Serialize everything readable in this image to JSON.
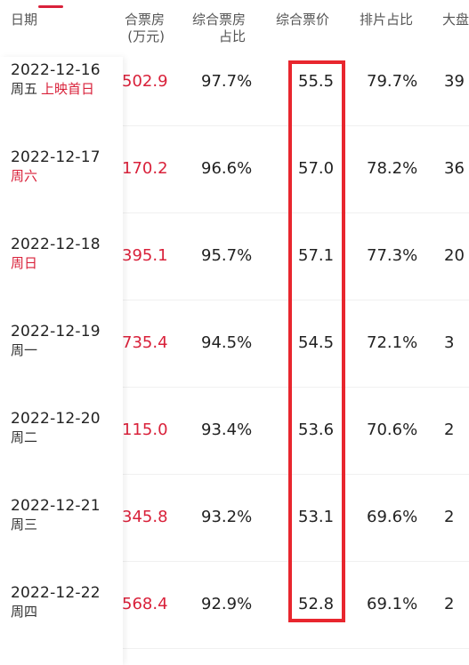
{
  "header": {
    "date": "日期",
    "box_office": [
      "合票房",
      "(万元)"
    ],
    "box_office_share": [
      "综合票房",
      "占比"
    ],
    "avg_price": "综合票价",
    "schedule_share": "排片占比",
    "big_screen": "大盘"
  },
  "rows": [
    {
      "date": "2022-12-16",
      "weekday": "周五",
      "tag": "上映首日",
      "weekend": false,
      "box_office": "502.9",
      "share": "97.7%",
      "price": "55.5",
      "schedule": "79.7%",
      "big": "39"
    },
    {
      "date": "2022-12-17",
      "weekday": "周六",
      "tag": "",
      "weekend": true,
      "box_office": "170.2",
      "share": "96.6%",
      "price": "57.0",
      "schedule": "78.2%",
      "big": "36"
    },
    {
      "date": "2022-12-18",
      "weekday": "周日",
      "tag": "",
      "weekend": true,
      "box_office": "395.1",
      "share": "95.7%",
      "price": "57.1",
      "schedule": "77.3%",
      "big": "20"
    },
    {
      "date": "2022-12-19",
      "weekday": "周一",
      "tag": "",
      "weekend": false,
      "box_office": "735.4",
      "share": "94.5%",
      "price": "54.5",
      "schedule": "72.1%",
      "big": "3"
    },
    {
      "date": "2022-12-20",
      "weekday": "周二",
      "tag": "",
      "weekend": false,
      "box_office": "115.0",
      "share": "93.4%",
      "price": "53.6",
      "schedule": "70.6%",
      "big": "2"
    },
    {
      "date": "2022-12-21",
      "weekday": "周三",
      "tag": "",
      "weekend": false,
      "box_office": "345.8",
      "share": "93.2%",
      "price": "53.1",
      "schedule": "69.6%",
      "big": "2"
    },
    {
      "date": "2022-12-22",
      "weekday": "周四",
      "tag": "",
      "weekend": false,
      "box_office": "568.4",
      "share": "92.9%",
      "price": "52.8",
      "schedule": "69.1%",
      "big": "2"
    }
  ],
  "colors": {
    "accent_red": "#d9213a",
    "highlight_box": "#e8262e"
  }
}
